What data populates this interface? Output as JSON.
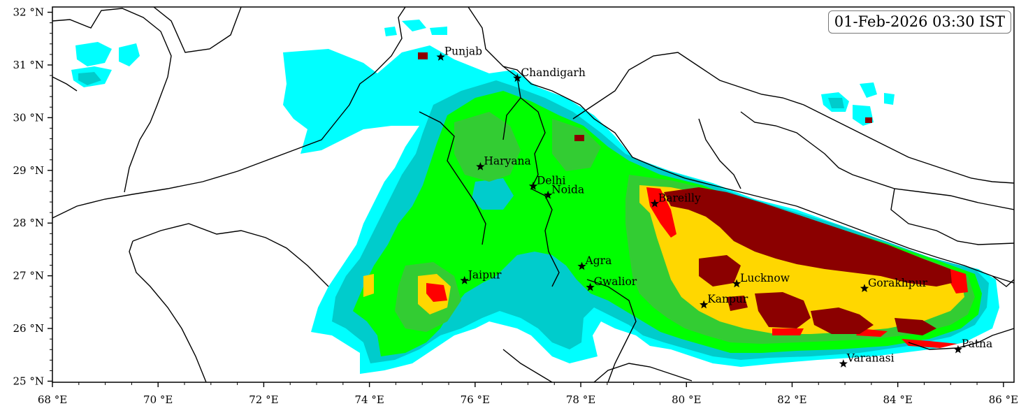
{
  "timestamp": "01-Feb-2026 03:30 IST",
  "axes": {
    "x_ticks": [
      {
        "value": 68,
        "label": "68 °E"
      },
      {
        "value": 70,
        "label": "70 °E"
      },
      {
        "value": 72,
        "label": "72 °E"
      },
      {
        "value": 74,
        "label": "74 °E"
      },
      {
        "value": 76,
        "label": "76 °E"
      },
      {
        "value": 78,
        "label": "78 °E"
      },
      {
        "value": 80,
        "label": "80 °E"
      },
      {
        "value": 82,
        "label": "82 °E"
      },
      {
        "value": 84,
        "label": "84 °E"
      },
      {
        "value": 86,
        "label": "86 °E"
      }
    ],
    "y_ticks": [
      {
        "value": 25,
        "label": "25 °N"
      },
      {
        "value": 26,
        "label": "26 °N"
      },
      {
        "value": 27,
        "label": "27 °N"
      },
      {
        "value": 28,
        "label": "28 °N"
      },
      {
        "value": 29,
        "label": "29 °N"
      },
      {
        "value": 30,
        "label": "30 °N"
      },
      {
        "value": 31,
        "label": "31 °N"
      },
      {
        "value": 32,
        "label": "32 °N"
      }
    ],
    "lon_range": [
      68,
      86.2
    ],
    "lat_range": [
      24.98,
      32.1
    ]
  },
  "colors": {
    "level1": "#00ffff",
    "level2": "#00cccc",
    "level3": "#00ff00",
    "level4": "#33cc33",
    "level5": "#ffd700",
    "level6": "#ff0000",
    "level7": "#8b0000"
  },
  "cities": [
    {
      "name": "Punjab",
      "lon": 75.35,
      "lat": 31.15
    },
    {
      "name": "Chandigarh",
      "lon": 76.8,
      "lat": 30.75
    },
    {
      "name": "Haryana",
      "lon": 76.1,
      "lat": 29.07
    },
    {
      "name": "Delhi",
      "lon": 77.1,
      "lat": 28.7
    },
    {
      "name": "Noida",
      "lon": 77.38,
      "lat": 28.53
    },
    {
      "name": "Bareilly",
      "lon": 79.4,
      "lat": 28.37
    },
    {
      "name": "Agra",
      "lon": 78.02,
      "lat": 27.18
    },
    {
      "name": "Jaipur",
      "lon": 75.8,
      "lat": 26.91
    },
    {
      "name": "Gwalior",
      "lon": 78.18,
      "lat": 26.78
    },
    {
      "name": "Lucknow",
      "lon": 80.95,
      "lat": 26.85
    },
    {
      "name": "Kanpur",
      "lon": 80.33,
      "lat": 26.45
    },
    {
      "name": "Gorakhpur",
      "lon": 83.37,
      "lat": 26.76
    },
    {
      "name": "Varanasi",
      "lon": 82.97,
      "lat": 25.33
    },
    {
      "name": "Patna",
      "lon": 85.14,
      "lat": 25.6
    }
  ]
}
